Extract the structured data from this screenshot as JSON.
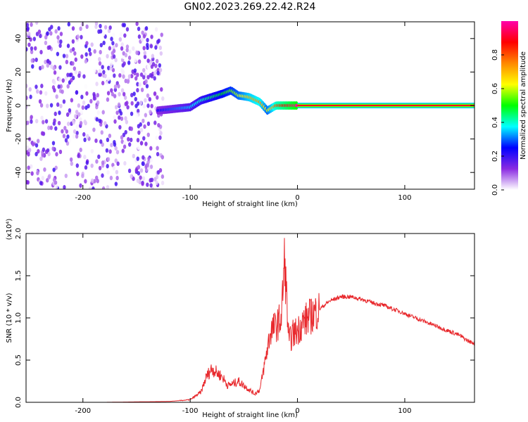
{
  "title": "GN02.2023.269.22.42.R24",
  "chart_data": [
    {
      "type": "heatmap",
      "title": "GN02.2023.269.22.42.R24",
      "xlabel": "Height of straight line (km)",
      "ylabel": "Frequency (Hz)",
      "xlim": [
        -253,
        165
      ],
      "ylim": [
        -50,
        50
      ],
      "xticks": [
        "-200",
        "-100",
        "0",
        "100"
      ],
      "yticks": [
        "-40",
        "-20",
        "0",
        "20",
        "40"
      ],
      "colorbar": {
        "label": "Normalized spectral amplitude",
        "range": [
          0,
          1
        ],
        "ticks": [
          "0.0",
          "0.2",
          "0.4",
          "0.6",
          "0.8"
        ],
        "colors": [
          "#ffffff",
          "#8a2be2",
          "#0000ff",
          "#00ffff",
          "#00ff00",
          "#ffff00",
          "#ff8800",
          "#ff0000",
          "#ff00aa"
        ]
      },
      "ridge": {
        "x": [
          -130,
          -115,
          -100,
          -90,
          -80,
          -70,
          -62,
          -55,
          -45,
          -35,
          -28,
          -20,
          -10,
          0,
          165
        ],
        "freq": [
          -3,
          -2,
          -1,
          3,
          5,
          7,
          9,
          6,
          5,
          2,
          -3,
          0,
          0,
          0,
          0
        ],
        "amplitude": [
          0.25,
          0.3,
          0.35,
          0.4,
          0.45,
          0.5,
          0.55,
          0.6,
          0.7,
          0.75,
          0.6,
          0.8,
          0.9,
          1.0,
          1.0
        ]
      },
      "noise_region": {
        "x": [
          -253,
          -125
        ],
        "amplitude": [
          0,
          0.2
        ]
      }
    },
    {
      "type": "line",
      "xlabel": "Height of straight line (km)",
      "ylabel": "SNR (10 * v/v)",
      "y_multiplier": "(x10⁴)",
      "xlim": [
        -253,
        165
      ],
      "ylim": [
        0,
        2.0
      ],
      "xticks": [
        "-200",
        "-100",
        "0",
        "100"
      ],
      "yticks": [
        "0.0",
        "0.5",
        "1.0",
        "1.5",
        "2.0"
      ],
      "series": [
        {
          "color": "#e8282c",
          "x": [
            -253,
            -180,
            -120,
            -100,
            -90,
            -85,
            -80,
            -75,
            -70,
            -65,
            -60,
            -55,
            -50,
            -45,
            -40,
            -35,
            -30,
            -25,
            -20,
            -15,
            -12,
            -10,
            -8,
            -5,
            0,
            5,
            10,
            15,
            20,
            25,
            30,
            40,
            50,
            60,
            70,
            80,
            90,
            95,
            100,
            110,
            120,
            130,
            140,
            150,
            160,
            165
          ],
          "y": [
            0.0,
            0.0,
            0.01,
            0.03,
            0.12,
            0.3,
            0.4,
            0.35,
            0.3,
            0.2,
            0.22,
            0.25,
            0.2,
            0.15,
            0.1,
            0.15,
            0.5,
            0.85,
            0.9,
            1.0,
            1.7,
            1.2,
            0.7,
            0.8,
            0.85,
            0.95,
            1.0,
            1.05,
            1.1,
            1.15,
            1.2,
            1.25,
            1.25,
            1.22,
            1.18,
            1.15,
            1.1,
            1.08,
            1.05,
            1.0,
            0.95,
            0.9,
            0.85,
            0.8,
            0.72,
            0.7
          ]
        }
      ]
    }
  ]
}
